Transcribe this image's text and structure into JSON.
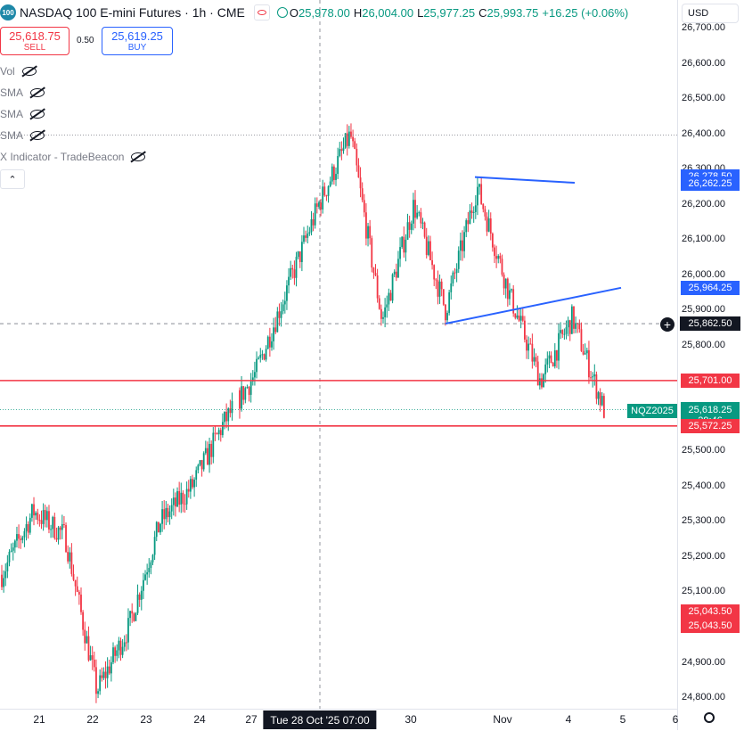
{
  "header": {
    "logo_text": "100",
    "title": "NASDAQ 100 E-mini Futures · 1h · CME",
    "ohlc": {
      "open_label": "O",
      "open": "25,978.00",
      "high_label": "H",
      "high": "26,004.00",
      "low_label": "L",
      "low": "25,977.25",
      "close_label": "C",
      "close": "25,993.75",
      "change": "+16.25 (+0.06%)"
    }
  },
  "trade": {
    "sell_price": "25,618.75",
    "sell_label": "SELL",
    "spread": "0.50",
    "buy_price": "25,619.25",
    "buy_label": "BUY"
  },
  "indicators": [
    {
      "name": "Vol"
    },
    {
      "name": "SMA"
    },
    {
      "name": "SMA"
    },
    {
      "name": "SMA"
    },
    {
      "name": "X Indicator - TradeBeacon"
    }
  ],
  "currency": "USD",
  "price_axis": {
    "ticks": [
      "26,700.00",
      "26,600.00",
      "26,500.00",
      "26,400.00",
      "26,300.00",
      "26,200.00",
      "26,100.00",
      "26,000.00",
      "25,900.00",
      "25,800.00",
      "25,700.00",
      "25,600.00",
      "25,500.00",
      "25,400.00",
      "25,300.00",
      "25,200.00",
      "25,100.00",
      "25,000.00",
      "24,900.00",
      "24,800.00"
    ],
    "tick_values": [
      26700,
      26600,
      26500,
      26400,
      26300,
      26200,
      26100,
      26000,
      25900,
      25800,
      25700,
      25600,
      25500,
      25400,
      25300,
      25200,
      25100,
      25000,
      24900,
      24800
    ],
    "tags": {
      "t1": {
        "text": "26,278.50",
        "value": 26278.5,
        "color": "#2962ff"
      },
      "t2": {
        "text": "26,262.25",
        "value": 26262.25,
        "color": "#2962ff"
      },
      "t3": {
        "text": "25,964.25",
        "value": 25964.25,
        "color": "#2962ff"
      },
      "t4": {
        "text": "25,862.50",
        "value": 25862.5,
        "color": "#131722"
      },
      "t5": {
        "text": "25,701.00",
        "value": 25701,
        "color": "#f23645"
      },
      "t6": {
        "text": "25,618.25",
        "value": 25618.25,
        "color": "#089981"
      },
      "t6b": {
        "text": "29:46"
      },
      "t7": {
        "text": "25,572.25",
        "value": 25572.25,
        "color": "#f23645"
      },
      "t8": {
        "text": "25,043.50",
        "value": 25043.5,
        "color": "#f23645"
      },
      "t9": {
        "text": "25,043.50",
        "value": 25043.5,
        "color": "#f23645"
      }
    },
    "symbol_tag": "NQZ2025"
  },
  "time_axis": {
    "labels": [
      "21",
      "22",
      "23",
      "24",
      "27",
      "30",
      "Nov",
      "4",
      "5",
      "6"
    ],
    "crosshair_label": "Tue 28 Oct '25   07:00"
  },
  "chart_data": {
    "type": "candlestick",
    "title": "NASDAQ 100 E-mini Futures · 1h · CME",
    "ylim": [
      24780,
      26730
    ],
    "x": [
      "21",
      "22",
      "23",
      "24",
      "27",
      "28",
      "30",
      "Nov",
      "4",
      "5",
      "6"
    ],
    "key_points": [
      {
        "x": "21",
        "close": 25150
      },
      {
        "x": "21",
        "close": 25330
      },
      {
        "x": "22",
        "close": 25260
      },
      {
        "x": "22",
        "close": 24820
      },
      {
        "x": "23",
        "close": 25000
      },
      {
        "x": "23",
        "close": 25300
      },
      {
        "x": "24",
        "close": 25400
      },
      {
        "x": "24",
        "close": 25580
      },
      {
        "x": "27",
        "close": 25720
      },
      {
        "x": "27",
        "close": 25960
      },
      {
        "x": "28",
        "close": 26200
      },
      {
        "x": "30",
        "close": 26400
      },
      {
        "x": "30",
        "close": 25870
      },
      {
        "x": "Nov",
        "close": 26200
      },
      {
        "x": "Nov",
        "close": 25900
      },
      {
        "x": "Nov",
        "close": 26250
      },
      {
        "x": "4",
        "close": 25950
      },
      {
        "x": "4",
        "close": 25700
      },
      {
        "x": "4",
        "close": 25880
      },
      {
        "x": "4",
        "close": 25618
      }
    ],
    "horizontal_lines": [
      25701.0,
      25572.25
    ],
    "trend_lines": [
      {
        "from": 26278.5,
        "to": 26262.25
      },
      {
        "from": 25862.5,
        "to": 25964.25
      }
    ],
    "last_price": 25618.25,
    "colors": {
      "up": "#089981",
      "down": "#f23645",
      "level": "#f23645",
      "trend": "#2962ff"
    }
  }
}
